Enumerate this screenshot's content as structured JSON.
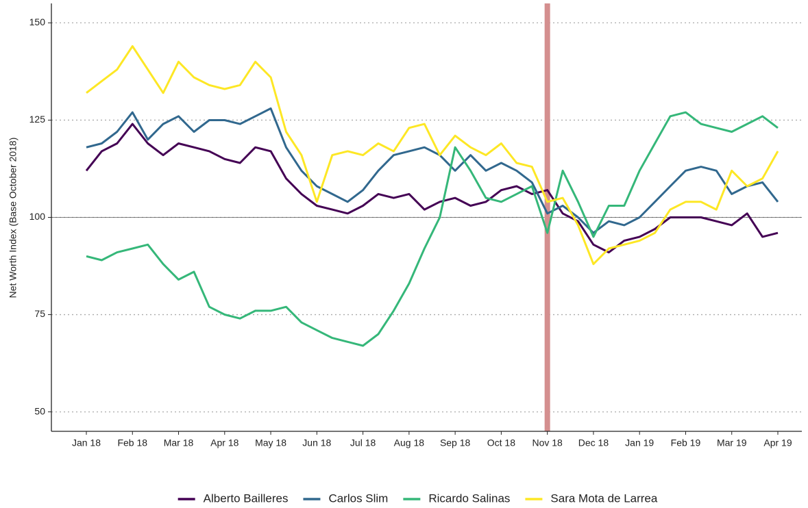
{
  "chart_data": {
    "type": "line",
    "y_label": "Net Worth Index (Base October 2018)",
    "categories": [
      "Jan 18",
      null,
      null,
      "Feb 18",
      null,
      null,
      "Mar 18",
      null,
      null,
      "Apr 18",
      null,
      null,
      "May 18",
      null,
      null,
      "Jun 18",
      null,
      null,
      "Jul 18",
      null,
      null,
      "Aug 18",
      null,
      null,
      "Sep 18",
      null,
      null,
      "Oct 18",
      null,
      null,
      "Nov 18",
      null,
      null,
      "Dec 18",
      null,
      null,
      "Jan 19",
      null,
      null,
      "Feb 19",
      null,
      null,
      "Mar 19",
      null,
      null,
      "Apr 19"
    ],
    "series": [
      {
        "name": "Alberto Bailleres",
        "color": "#440154",
        "values": [
          112,
          117,
          119,
          124,
          119,
          116,
          119,
          118,
          117,
          115,
          114,
          118,
          117,
          110,
          106,
          103,
          102,
          101,
          103,
          106,
          105,
          106,
          102,
          104,
          105,
          103,
          104,
          107,
          108,
          106,
          107,
          101,
          99,
          93,
          91,
          94,
          95,
          97,
          100,
          100,
          100,
          99,
          98,
          101,
          95,
          96
        ]
      },
      {
        "name": "Carlos Slim",
        "color": "#31688e",
        "values": [
          118,
          119,
          122,
          127,
          120,
          124,
          126,
          122,
          125,
          125,
          124,
          126,
          128,
          118,
          112,
          108,
          106,
          104,
          107,
          112,
          116,
          117,
          118,
          116,
          112,
          116,
          112,
          114,
          112,
          109,
          101,
          103,
          100,
          96,
          99,
          98,
          100,
          104,
          108,
          112,
          113,
          112,
          106,
          108,
          109,
          104
        ]
      },
      {
        "name": "Ricardo Salinas",
        "color": "#35b779",
        "values": [
          90,
          89,
          91,
          92,
          93,
          88,
          84,
          86,
          77,
          75,
          74,
          76,
          76,
          77,
          73,
          71,
          69,
          68,
          67,
          70,
          76,
          83,
          92,
          100,
          118,
          112,
          105,
          104,
          106,
          108,
          96,
          112,
          104,
          95,
          103,
          103,
          112,
          119,
          126,
          127,
          124,
          123,
          122,
          124,
          126,
          123
        ]
      },
      {
        "name": "Sara Mota de Larrea",
        "color": "#fde725",
        "values": [
          132,
          135,
          138,
          144,
          138,
          132,
          140,
          136,
          134,
          133,
          134,
          140,
          136,
          122,
          116,
          104,
          116,
          117,
          116,
          119,
          117,
          123,
          124,
          116,
          121,
          118,
          116,
          119,
          114,
          113,
          104,
          105,
          98,
          88,
          92,
          93,
          94,
          96,
          102,
          104,
          104,
          102,
          112,
          108,
          110,
          117
        ]
      }
    ],
    "ylim": [
      45,
      155
    ],
    "yticks": [
      50,
      75,
      100,
      125,
      150
    ],
    "reference_line": 100,
    "highlight_category": "Nov 18",
    "grid": true,
    "legend": "bottom"
  }
}
